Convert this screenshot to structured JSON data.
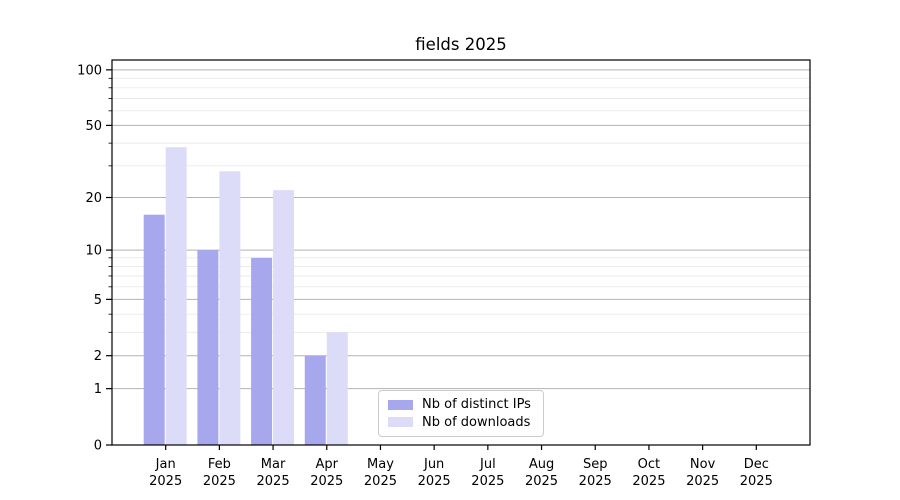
{
  "page": {
    "background": "#ffffff"
  },
  "chart_data": {
    "type": "bar",
    "title": "fields 2025",
    "categories": [
      "Jan",
      "Feb",
      "Mar",
      "Apr",
      "May",
      "Jun",
      "Jul",
      "Aug",
      "Sep",
      "Oct",
      "Nov",
      "Dec"
    ],
    "category_year": "2025",
    "series": [
      {
        "name": "Nb of distinct IPs",
        "color": "#a7a7ee",
        "values": [
          16,
          10,
          9,
          2,
          0,
          0,
          0,
          0,
          0,
          0,
          0,
          0
        ]
      },
      {
        "name": "Nb of downloads",
        "color": "#dcdcf9",
        "values": [
          38,
          28,
          22,
          3,
          0,
          0,
          0,
          0,
          0,
          0,
          0,
          0
        ]
      }
    ],
    "y_scale": "log1p",
    "ylim": [
      0,
      113
    ],
    "y_max": 113,
    "y_major_ticks": [
      100,
      50,
      20,
      10,
      5,
      2,
      1,
      0
    ],
    "y_minor_ticks": [
      3,
      4,
      6,
      7,
      8,
      9,
      30,
      40,
      60,
      70,
      80,
      90
    ],
    "xlabel": "",
    "ylabel": "",
    "grid": {
      "major_color": "#b2b2b2",
      "minor_color": "#e9e9e9"
    },
    "axis_color": "#000000",
    "legend_position": "lower center"
  }
}
